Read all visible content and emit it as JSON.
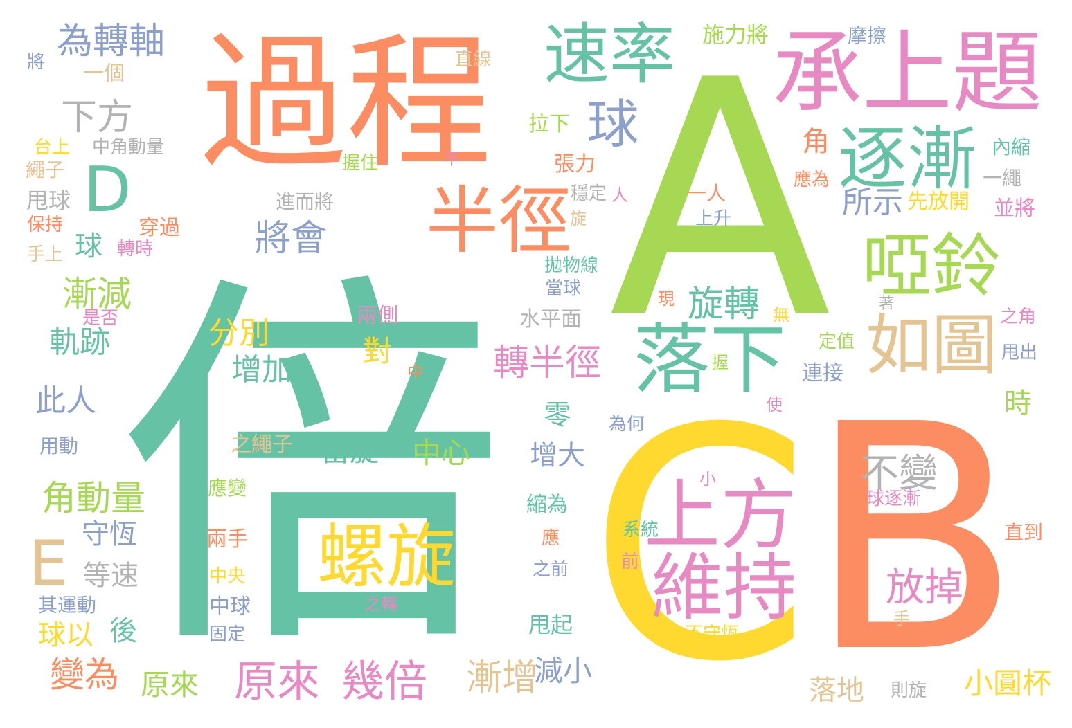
{
  "colors": {
    "teal": "#66c2a5",
    "orange": "#fc8d62",
    "blue": "#8da0cb",
    "pink": "#e78ac3",
    "green": "#a6d854",
    "yellow": "#ffd92f",
    "tan": "#e5c494",
    "gray": "#b3b3b3"
  },
  "words": [
    {
      "text": "倍",
      "color": "teal"
    },
    {
      "text": "A",
      "color": "green"
    },
    {
      "text": "C",
      "color": "yellow"
    },
    {
      "text": "B",
      "color": "orange"
    },
    {
      "text": "過程",
      "color": "orange"
    },
    {
      "text": "承上題",
      "color": "pink"
    },
    {
      "text": "速率",
      "color": "teal"
    },
    {
      "text": "逐漸",
      "color": "teal"
    },
    {
      "text": "半徑",
      "color": "orange"
    },
    {
      "text": "啞鈴",
      "color": "green"
    },
    {
      "text": "落下",
      "color": "teal"
    },
    {
      "text": "如圖",
      "color": "tan"
    },
    {
      "text": "上方",
      "color": "pink"
    },
    {
      "text": "維持",
      "color": "pink"
    },
    {
      "text": "螺旋",
      "color": "yellow"
    },
    {
      "text": "球",
      "color": "blue"
    },
    {
      "text": "D",
      "color": "teal"
    },
    {
      "text": "E",
      "color": "tan"
    },
    {
      "text": "為轉軸",
      "color": "blue"
    },
    {
      "text": "下方",
      "color": "gray"
    },
    {
      "text": "將會",
      "color": "blue"
    },
    {
      "text": "漸減",
      "color": "green"
    },
    {
      "text": "軌跡",
      "color": "teal"
    },
    {
      "text": "此人",
      "color": "blue"
    },
    {
      "text": "角動量",
      "color": "green"
    },
    {
      "text": "守恆",
      "color": "blue"
    },
    {
      "text": "等速",
      "color": "gray"
    },
    {
      "text": "後",
      "color": "teal"
    },
    {
      "text": "球以",
      "color": "yellow"
    },
    {
      "text": "變為",
      "color": "orange"
    },
    {
      "text": "原來",
      "color": "green"
    },
    {
      "text": "原來",
      "color": "pink"
    },
    {
      "text": "幾倍",
      "color": "pink"
    },
    {
      "text": "漸增",
      "color": "tan"
    },
    {
      "text": "減小",
      "color": "blue"
    },
    {
      "text": "小圓杯",
      "color": "yellow"
    },
    {
      "text": "落地",
      "color": "tan"
    },
    {
      "text": "放掉",
      "color": "pink"
    },
    {
      "text": "不變",
      "color": "gray"
    },
    {
      "text": "旋轉",
      "color": "teal"
    },
    {
      "text": "轉半徑",
      "color": "pink"
    },
    {
      "text": "分別",
      "color": "yellow"
    },
    {
      "text": "增加",
      "color": "teal"
    },
    {
      "text": "對",
      "color": "yellow"
    },
    {
      "text": "零",
      "color": "teal"
    },
    {
      "text": "當旋",
      "color": "teal"
    },
    {
      "text": "中心",
      "color": "green"
    },
    {
      "text": "增大",
      "color": "blue"
    },
    {
      "text": "所示",
      "color": "blue"
    },
    {
      "text": "角",
      "color": "orange"
    },
    {
      "text": "時",
      "color": "green"
    },
    {
      "text": "球",
      "color": "teal"
    },
    {
      "text": "直線",
      "color": "tan"
    },
    {
      "text": "施力將",
      "color": "green"
    },
    {
      "text": "摩擦",
      "color": "blue"
    },
    {
      "text": "將",
      "color": "blue"
    },
    {
      "text": "一個",
      "color": "tan"
    },
    {
      "text": "台上",
      "color": "yellow"
    },
    {
      "text": "中角動量",
      "color": "gray"
    },
    {
      "text": "繩子",
      "color": "tan"
    },
    {
      "text": "甩球",
      "color": "gray"
    },
    {
      "text": "保持",
      "color": "orange"
    },
    {
      "text": "手上",
      "color": "tan"
    },
    {
      "text": "穿過",
      "color": "orange"
    },
    {
      "text": "轉時",
      "color": "pink"
    },
    {
      "text": "是否",
      "color": "pink"
    },
    {
      "text": "用動",
      "color": "blue"
    },
    {
      "text": "其運動",
      "color": "blue"
    },
    {
      "text": "握住",
      "color": "green"
    },
    {
      "text": "不",
      "color": "pink"
    },
    {
      "text": "拉下",
      "color": "green"
    },
    {
      "text": "張力",
      "color": "orange"
    },
    {
      "text": "穩定",
      "color": "gray"
    },
    {
      "text": "人",
      "color": "pink"
    },
    {
      "text": "旋",
      "color": "tan"
    },
    {
      "text": "進而將",
      "color": "gray"
    },
    {
      "text": "一人",
      "color": "orange"
    },
    {
      "text": "上升",
      "color": "blue"
    },
    {
      "text": "應為",
      "color": "orange"
    },
    {
      "text": "一繩",
      "color": "gray"
    },
    {
      "text": "內縮",
      "color": "teal"
    },
    {
      "text": "先放開",
      "color": "yellow"
    },
    {
      "text": "並將",
      "color": "pink"
    },
    {
      "text": "拋物線",
      "color": "teal"
    },
    {
      "text": "當球",
      "color": "blue"
    },
    {
      "text": "現",
      "color": "orange"
    },
    {
      "text": "無",
      "color": "yellow"
    },
    {
      "text": "著",
      "color": "gray"
    },
    {
      "text": "之角",
      "color": "pink"
    },
    {
      "text": "水平面",
      "color": "gray"
    },
    {
      "text": "兩側",
      "color": "pink"
    },
    {
      "text": "定值",
      "color": "green"
    },
    {
      "text": "握",
      "color": "green"
    },
    {
      "text": "甩出",
      "color": "blue"
    },
    {
      "text": "連接",
      "color": "blue"
    },
    {
      "text": "中",
      "color": "orange"
    },
    {
      "text": "使",
      "color": "pink"
    },
    {
      "text": "為何",
      "color": "blue"
    },
    {
      "text": "之繩子",
      "color": "tan"
    },
    {
      "text": "小",
      "color": "pink"
    },
    {
      "text": "球逐漸",
      "color": "pink"
    },
    {
      "text": "應變",
      "color": "green"
    },
    {
      "text": "縮為",
      "color": "teal"
    },
    {
      "text": "系統",
      "color": "teal"
    },
    {
      "text": "兩手",
      "color": "orange"
    },
    {
      "text": "應",
      "color": "orange"
    },
    {
      "text": "直到",
      "color": "orange"
    },
    {
      "text": "中央",
      "color": "yellow"
    },
    {
      "text": "之前",
      "color": "blue"
    },
    {
      "text": "前",
      "color": "pink"
    },
    {
      "text": "中球",
      "color": "blue"
    },
    {
      "text": "之轉",
      "color": "pink"
    },
    {
      "text": "固定",
      "color": "blue"
    },
    {
      "text": "甩起",
      "color": "teal"
    },
    {
      "text": "不守恆",
      "color": "yellow"
    },
    {
      "text": "手",
      "color": "tan"
    },
    {
      "text": "則旋",
      "color": "gray"
    }
  ]
}
